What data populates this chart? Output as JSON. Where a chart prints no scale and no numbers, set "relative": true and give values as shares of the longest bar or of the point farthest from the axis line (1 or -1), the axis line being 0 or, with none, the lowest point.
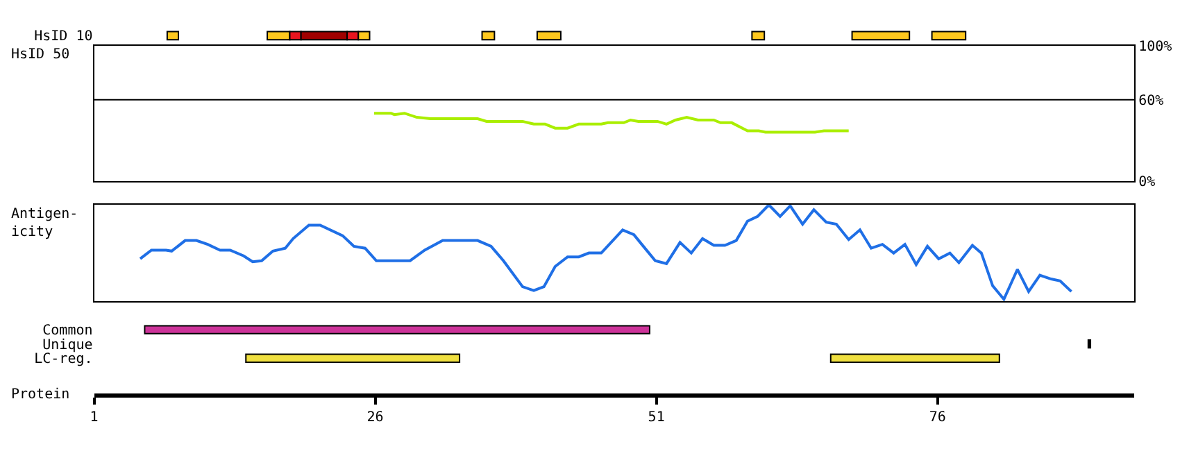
{
  "chart_data": [
    {
      "type": "bar",
      "orientation": "horizontal",
      "categories": [
        "HsID 10"
      ],
      "xlim": [
        1,
        93.5
      ],
      "tick_labels": "y",
      "series": [
        {
          "color": "#ffc81e",
          "values": [
            1.0
          ],
          "base": [
            7.5
          ]
        },
        {
          "color": "#ffc81e",
          "values": [
            2.0
          ],
          "base": [
            16.4
          ]
        },
        {
          "color": "#e8141e",
          "values": [
            1.0
          ],
          "base": [
            18.4
          ]
        },
        {
          "color": "#a00000",
          "values": [
            4.1
          ],
          "base": [
            19.4
          ]
        },
        {
          "color": "#e8141e",
          "values": [
            1.0
          ],
          "base": [
            23.5
          ]
        },
        {
          "color": "#ffc81e",
          "values": [
            1.0
          ],
          "base": [
            24.5
          ]
        },
        {
          "color": "#ffc81e",
          "values": [
            1.1
          ],
          "base": [
            35.5
          ]
        },
        {
          "color": "#ffc81e",
          "values": [
            2.1
          ],
          "base": [
            40.4
          ]
        },
        {
          "color": "#ffc81e",
          "values": [
            1.1
          ],
          "base": [
            59.5
          ]
        },
        {
          "color": "#ffc81e",
          "values": [
            5.1
          ],
          "base": [
            68.4
          ]
        },
        {
          "color": "#ffc81e",
          "values": [
            3.0
          ],
          "base": [
            75.5
          ]
        }
      ]
    },
    {
      "type": "line",
      "ylabel": "HsID 50",
      "xlim": [
        1,
        93.5
      ],
      "ylim": [
        0,
        100
      ],
      "yticks": [
        {
          "value": 0,
          "label": "0%"
        },
        {
          "value": 60,
          "label": "60%"
        },
        {
          "value": 100,
          "label": "100%"
        }
      ],
      "tick_labels": "y",
      "ref_lines": [
        {
          "axis": "y",
          "value": 60,
          "label": null,
          "color": "#000000"
        }
      ],
      "x": [
        25.9,
        27.4,
        27.7,
        28.6,
        29.7,
        30.9,
        35.1,
        35.9,
        39.1,
        40.1,
        41.1,
        42.0,
        43.1,
        44.1,
        46.1,
        46.7,
        48.1,
        48.7,
        49.4,
        51.1,
        51.9,
        52.7,
        53.7,
        54.7,
        56.1,
        56.7,
        57.7,
        59.1,
        60.1,
        60.7,
        65.1,
        65.9,
        68.1
      ],
      "series": [
        {
          "color": "#aaee00",
          "values": [
            50,
            50,
            49,
            50,
            47,
            46,
            46,
            44,
            44,
            42,
            42,
            39,
            39,
            42,
            42,
            43,
            43,
            45,
            44,
            44,
            42,
            45,
            47,
            45,
            45,
            43,
            43,
            37,
            37,
            36,
            36,
            37,
            37
          ]
        }
      ]
    },
    {
      "type": "line",
      "ylabel": "Antigen-\nicity",
      "relative": true,
      "xlim": [
        1,
        93.5
      ],
      "tick_labels": false,
      "x": [
        5.1,
        6.1,
        7.4,
        7.9,
        9.1,
        10.1,
        11.1,
        12.2,
        13.1,
        14.3,
        15.1,
        15.9,
        16.9,
        18.0,
        18.7,
        20.1,
        21.1,
        23.1,
        24.1,
        25.1,
        26.1,
        29.1,
        30.4,
        32.0,
        35.1,
        36.3,
        37.4,
        39.1,
        40.1,
        41.0,
        42.0,
        43.1,
        44.1,
        45.0,
        46.1,
        48.0,
        49.0,
        49.7,
        50.9,
        51.9,
        53.1,
        54.1,
        55.1,
        56.1,
        57.1,
        58.1,
        59.1,
        60.0,
        61.0,
        62.0,
        62.9,
        64.0,
        65.0,
        66.1,
        67.0,
        68.1,
        69.1,
        70.1,
        71.1,
        72.1,
        73.1,
        74.1,
        75.1,
        76.1,
        77.1,
        77.9,
        79.1,
        79.9,
        80.9,
        81.9,
        83.1,
        84.1,
        85.1,
        86.1,
        86.9,
        87.9
      ],
      "series": [
        {
          "color": "#1f6fe6",
          "values": [
            0.44,
            0.53,
            0.53,
            0.52,
            0.63,
            0.63,
            0.59,
            0.53,
            0.53,
            0.47,
            0.41,
            0.42,
            0.52,
            0.55,
            0.65,
            0.79,
            0.79,
            0.68,
            0.57,
            0.55,
            0.42,
            0.42,
            0.53,
            0.63,
            0.63,
            0.57,
            0.42,
            0.15,
            0.11,
            0.15,
            0.36,
            0.46,
            0.46,
            0.5,
            0.5,
            0.74,
            0.69,
            0.59,
            0.42,
            0.39,
            0.61,
            0.5,
            0.65,
            0.58,
            0.58,
            0.63,
            0.83,
            0.88,
            1.0,
            0.88,
            0.99,
            0.8,
            0.95,
            0.82,
            0.8,
            0.64,
            0.74,
            0.55,
            0.59,
            0.5,
            0.59,
            0.38,
            0.57,
            0.44,
            0.5,
            0.4,
            0.58,
            0.5,
            0.16,
            0.02,
            0.33,
            0.1,
            0.27,
            0.23,
            0.21,
            0.1
          ]
        }
      ]
    },
    {
      "type": "bar",
      "orientation": "horizontal",
      "categories": [
        "Common",
        "Unique",
        "LC-reg."
      ],
      "xlabel": "Protein",
      "xlim": [
        1,
        93.5
      ],
      "xticks": [
        1,
        26,
        51,
        76
      ],
      "series": [
        {
          "colors": [
            "#cc3399",
            "#000000",
            "#f0e040"
          ],
          "values": [
            44.9,
            0.2,
            19.0
          ],
          "base": [
            5.5,
            89.4,
            14.5
          ]
        },
        {
          "color": "#f0e040",
          "values": [
            null,
            null,
            15.0
          ],
          "base": [
            null,
            null,
            66.5
          ]
        }
      ]
    }
  ]
}
